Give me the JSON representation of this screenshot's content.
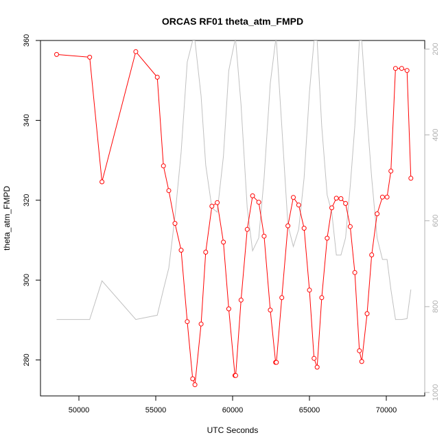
{
  "chart_data": {
    "type": "line",
    "title": "ORCAS RF01 theta_atm_FMPD",
    "xlabel": "UTC Seconds",
    "ylabel": "theta_atm_FMPD",
    "xlim": [
      47500,
      72500
    ],
    "ylim": [
      271,
      360
    ],
    "y2lim": [
      1008,
      180
    ],
    "x_ticks": [
      50000,
      55000,
      60000,
      65000,
      70000
    ],
    "y_ticks": [
      280,
      300,
      320,
      340,
      360
    ],
    "y2_ticks": [
      200,
      400,
      600,
      800,
      1000
    ],
    "grid": false,
    "series": [
      {
        "color": "#ff0000",
        "marker": "open-circle",
        "axis": "left",
        "points": [
          [
            48550,
            356.5
          ],
          [
            50700,
            355.8
          ],
          [
            51500,
            324.6
          ],
          [
            53700,
            357.2
          ],
          [
            55100,
            350.8
          ],
          [
            55500,
            328.6
          ],
          [
            55850,
            322.4
          ],
          [
            56250,
            314.2
          ],
          [
            56650,
            307.5
          ],
          [
            57050,
            289.6
          ],
          [
            57400,
            275.3
          ],
          [
            57550,
            273.8
          ],
          [
            57950,
            289.0
          ],
          [
            58250,
            307.0
          ],
          [
            58650,
            318.5
          ],
          [
            59000,
            319.4
          ],
          [
            59400,
            309.5
          ],
          [
            59750,
            292.8
          ],
          [
            60150,
            276.1
          ],
          [
            60200,
            276.1
          ],
          [
            60550,
            295.0
          ],
          [
            60950,
            312.7
          ],
          [
            61300,
            321.1
          ],
          [
            61700,
            319.5
          ],
          [
            62050,
            311.0
          ],
          [
            62450,
            292.5
          ],
          [
            62800,
            279.4
          ],
          [
            62850,
            279.4
          ],
          [
            63200,
            295.6
          ],
          [
            63600,
            313.6
          ],
          [
            63950,
            320.7
          ],
          [
            64300,
            318.8
          ],
          [
            64650,
            313.0
          ],
          [
            65000,
            297.5
          ],
          [
            65300,
            280.4
          ],
          [
            65500,
            278.2
          ],
          [
            65800,
            295.6
          ],
          [
            66150,
            310.5
          ],
          [
            66450,
            318.1
          ],
          [
            66750,
            320.5
          ],
          [
            67050,
            320.4
          ],
          [
            67350,
            319.2
          ],
          [
            67650,
            313.4
          ],
          [
            67950,
            301.9
          ],
          [
            68250,
            282.3
          ],
          [
            68400,
            279.6
          ],
          [
            68750,
            291.6
          ],
          [
            69050,
            306.3
          ],
          [
            69400,
            316.6
          ],
          [
            69750,
            320.8
          ],
          [
            70050,
            320.8
          ],
          [
            70300,
            327.3
          ],
          [
            70600,
            353.0
          ],
          [
            71000,
            353.0
          ],
          [
            71350,
            352.5
          ],
          [
            71600,
            325.5
          ]
        ]
      },
      {
        "color": "#c0c0c0",
        "marker": "none",
        "axis": "right",
        "points": [
          [
            48550,
            830
          ],
          [
            50700,
            830
          ],
          [
            51500,
            740
          ],
          [
            53700,
            830
          ],
          [
            55100,
            820
          ],
          [
            55500,
            760
          ],
          [
            55850,
            710
          ],
          [
            56250,
            590
          ],
          [
            56650,
            440
          ],
          [
            57050,
            230
          ],
          [
            57400,
            180
          ],
          [
            57550,
            180
          ],
          [
            57950,
            310
          ],
          [
            58250,
            470
          ],
          [
            58650,
            570
          ],
          [
            59000,
            580
          ],
          [
            59400,
            450
          ],
          [
            59750,
            250
          ],
          [
            60150,
            180
          ],
          [
            60200,
            180
          ],
          [
            60550,
            330
          ],
          [
            60950,
            570
          ],
          [
            61300,
            670
          ],
          [
            61700,
            640
          ],
          [
            62050,
            500
          ],
          [
            62450,
            280
          ],
          [
            62800,
            180
          ],
          [
            62850,
            180
          ],
          [
            63200,
            380
          ],
          [
            63600,
            610
          ],
          [
            63950,
            660
          ],
          [
            64300,
            620
          ],
          [
            64650,
            500
          ],
          [
            65000,
            300
          ],
          [
            65300,
            180
          ],
          [
            65500,
            180
          ],
          [
            65800,
            380
          ],
          [
            66150,
            540
          ],
          [
            66450,
            580
          ],
          [
            66750,
            680
          ],
          [
            67050,
            680
          ],
          [
            67350,
            640
          ],
          [
            67650,
            520
          ],
          [
            67950,
            380
          ],
          [
            68250,
            180
          ],
          [
            68400,
            180
          ],
          [
            68750,
            360
          ],
          [
            69050,
            500
          ],
          [
            69400,
            640
          ],
          [
            69750,
            690
          ],
          [
            70050,
            690
          ],
          [
            70300,
            760
          ],
          [
            70600,
            830
          ],
          [
            71000,
            830
          ],
          [
            71350,
            828
          ],
          [
            71600,
            760
          ]
        ]
      }
    ]
  }
}
